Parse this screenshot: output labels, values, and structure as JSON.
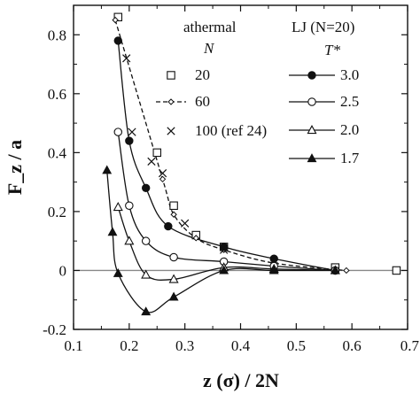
{
  "chart_data": {
    "type": "scatter",
    "xlabel": "z (σ) / 2N",
    "ylabel": "F_z / a",
    "xlim": [
      0.1,
      0.7
    ],
    "ylim": [
      -0.2,
      0.9
    ],
    "xticks": [
      "0.1",
      "0.2",
      "0.3",
      "0.4",
      "0.5",
      "0.6",
      "0.7"
    ],
    "yticks": [
      "-0.2",
      "0",
      "0.2",
      "0.4",
      "0.6",
      "0.8"
    ],
    "grid": false,
    "zero_line": true,
    "legend_groups": [
      {
        "title": "athermal",
        "header": "N",
        "entries": [
          "20",
          "60",
          "100 (ref 24)"
        ]
      },
      {
        "title": "LJ (N=20)",
        "header": "T*",
        "entries": [
          "3.0",
          "2.5",
          "2.0",
          "1.7"
        ]
      }
    ],
    "series": [
      {
        "name": "20",
        "marker": "square-open",
        "line": "none",
        "x": [
          0.18,
          0.25,
          0.28,
          0.32,
          0.37,
          0.57,
          0.68
        ],
        "y": [
          0.86,
          0.4,
          0.22,
          0.12,
          0.08,
          0.01,
          0.0
        ]
      },
      {
        "name": "60",
        "marker": "diamond-small",
        "line": "dashed",
        "x": [
          0.175,
          0.26,
          0.28,
          0.32,
          0.37,
          0.46,
          0.59
        ],
        "y": [
          0.85,
          0.31,
          0.19,
          0.11,
          0.07,
          0.025,
          0.0
        ]
      },
      {
        "name": "100 (ref 24)",
        "marker": "x",
        "line": "none",
        "x": [
          0.195,
          0.205,
          0.24,
          0.26,
          0.3,
          0.37,
          0.46
        ],
        "y": [
          0.72,
          0.47,
          0.37,
          0.33,
          0.16,
          0.07,
          0.015
        ]
      },
      {
        "name": "3.0",
        "marker": "circle-filled",
        "line": "solid",
        "x": [
          0.18,
          0.2,
          0.23,
          0.27,
          0.37,
          0.46,
          0.57
        ],
        "y": [
          0.78,
          0.44,
          0.28,
          0.15,
          0.08,
          0.04,
          0.0
        ]
      },
      {
        "name": "2.5",
        "marker": "circle-open",
        "line": "solid",
        "x": [
          0.18,
          0.2,
          0.23,
          0.28,
          0.37,
          0.46,
          0.57
        ],
        "y": [
          0.47,
          0.22,
          0.1,
          0.045,
          0.03,
          0.015,
          0.0
        ]
      },
      {
        "name": "2.0",
        "marker": "triangle-open",
        "line": "solid",
        "x": [
          0.18,
          0.2,
          0.23,
          0.28,
          0.37,
          0.46,
          0.57
        ],
        "y": [
          0.215,
          0.1,
          -0.015,
          -0.03,
          0.01,
          0.005,
          0.0
        ]
      },
      {
        "name": "1.7",
        "marker": "triangle-filled",
        "line": "solid",
        "x": [
          0.16,
          0.17,
          0.18,
          0.23,
          0.28,
          0.37,
          0.46,
          0.57
        ],
        "y": [
          0.34,
          0.13,
          -0.01,
          -0.14,
          -0.09,
          0.0,
          0.0,
          0.0
        ]
      }
    ]
  }
}
